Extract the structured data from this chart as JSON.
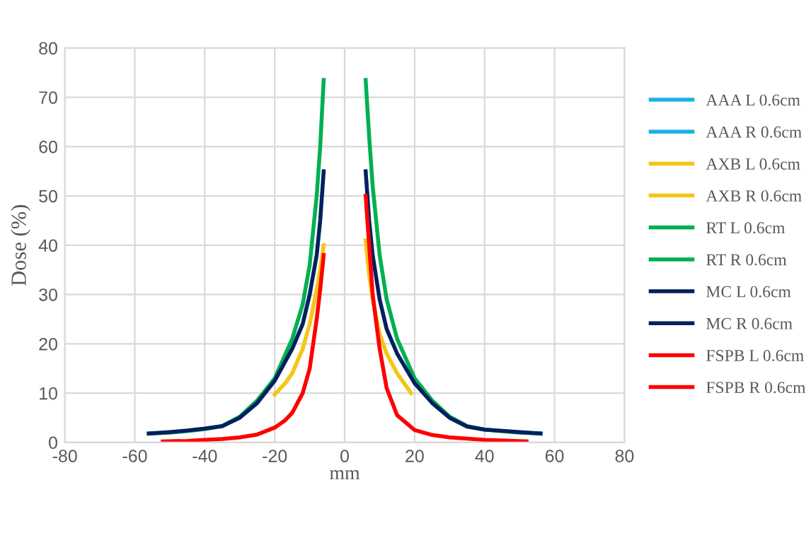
{
  "chart_data": {
    "type": "line",
    "xlabel": "mm",
    "ylabel": "Dose (%)",
    "xlim": [
      -80,
      80
    ],
    "xticks": [
      -80,
      -60,
      -40,
      -20,
      0,
      20,
      40,
      60,
      80
    ],
    "ylim": [
      0,
      80
    ],
    "yticks": [
      0,
      10,
      20,
      30,
      40,
      50,
      60,
      70,
      80
    ],
    "grid": true,
    "legend": "right",
    "marker": "none",
    "line_style": "solid",
    "series": [
      {
        "name": "AAA L 0.6cm",
        "color": "#1fb0e6"
      },
      {
        "name": "AAA R 0.6cm",
        "color": "#1fb0e6"
      },
      {
        "name": "AXB L 0.6cm",
        "color": "#f5c518",
        "x": [
          -20,
          -17,
          -15,
          -12,
          -10,
          -8,
          -7,
          -6
        ],
        "values": [
          9.7,
          12,
          14,
          19,
          24,
          31,
          35,
          40
        ]
      },
      {
        "name": "AXB R 0.6cm",
        "color": "#f5c518",
        "x": [
          6,
          7,
          8,
          10,
          12,
          15,
          17,
          19
        ],
        "values": [
          41,
          34,
          29,
          22,
          18,
          14,
          12,
          10
        ]
      },
      {
        "name": "RT L 0.6cm",
        "color": "#00b050",
        "x": [
          -56,
          -50,
          -45,
          -40,
          -35,
          -30,
          -25,
          -20,
          -15,
          -12,
          -10,
          -8,
          -7,
          -6
        ],
        "values": [
          1.8,
          2.0,
          2.3,
          2.7,
          3.3,
          5.2,
          8.5,
          13,
          21,
          28,
          36,
          50,
          60,
          73.5
        ]
      },
      {
        "name": "RT R 0.6cm",
        "color": "#00b050",
        "x": [
          6,
          7,
          8,
          10,
          12,
          15,
          20,
          25,
          30,
          35,
          40,
          50,
          56
        ],
        "values": [
          73.5,
          62,
          52,
          38,
          29,
          21,
          13,
          8.5,
          5.2,
          3.3,
          2.6,
          2.0,
          1.8
        ]
      },
      {
        "name": "MC L 0.6cm",
        "color": "#002060",
        "x": [
          -56,
          -50,
          -45,
          -40,
          -35,
          -30,
          -25,
          -20,
          -15,
          -12,
          -10,
          -8,
          -7,
          -6
        ],
        "values": [
          1.8,
          2.1,
          2.4,
          2.8,
          3.3,
          5,
          8,
          12.5,
          19,
          24,
          30,
          38,
          45,
          55
        ]
      },
      {
        "name": "MC R 0.6cm",
        "color": "#002060",
        "x": [
          6,
          7,
          8,
          10,
          12,
          15,
          20,
          25,
          30,
          35,
          40,
          50,
          56
        ],
        "values": [
          55,
          45,
          38,
          29,
          23,
          18,
          12,
          8,
          5,
          3.2,
          2.6,
          2.1,
          1.8
        ]
      },
      {
        "name": "FSPB L 0.6cm",
        "color": "#ff0000",
        "x": [
          -52,
          -45,
          -40,
          -35,
          -30,
          -25,
          -20,
          -17,
          -15,
          -12,
          -10,
          -8,
          -7,
          -6
        ],
        "values": [
          0.2,
          0.3,
          0.5,
          0.7,
          1,
          1.6,
          3,
          4.5,
          6,
          10,
          15,
          25,
          31,
          38
        ]
      },
      {
        "name": "FSPB R 0.6cm",
        "color": "#ff0000",
        "x": [
          6,
          7,
          8,
          10,
          12,
          15,
          20,
          25,
          30,
          40,
          52
        ],
        "values": [
          50,
          40,
          30,
          19,
          11,
          5.5,
          2.5,
          1.5,
          1,
          0.5,
          0.2
        ]
      }
    ]
  }
}
